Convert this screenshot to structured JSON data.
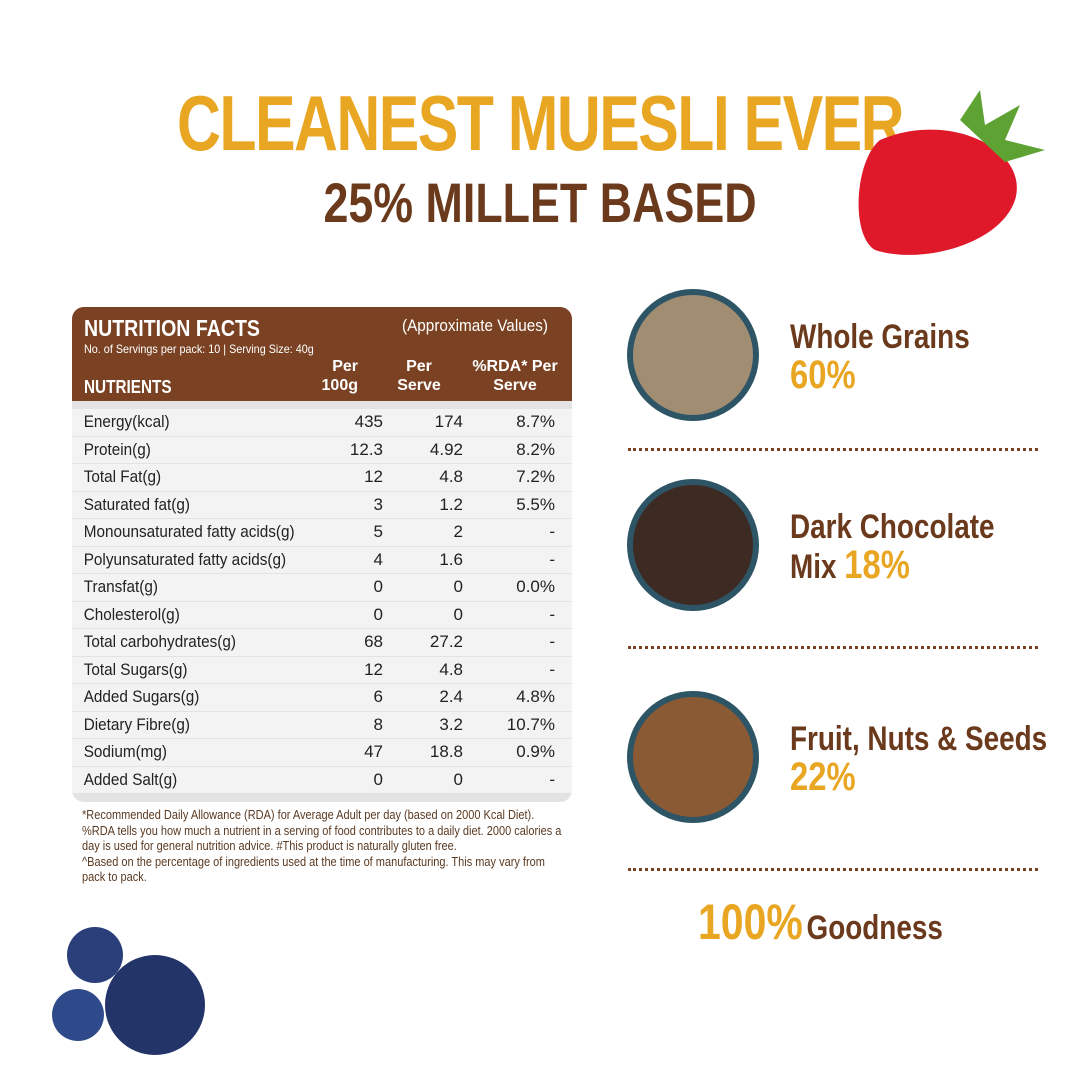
{
  "header": {
    "title": "CLEANEST MUESLI EVER",
    "subtitle": "25% MILLET BASED"
  },
  "table": {
    "title": "NUTRITION FACTS",
    "note": "(Approximate Values)",
    "servings": "No. of Servings per pack: 10 | Serving Size: 40g",
    "columns": [
      "NUTRIENTS",
      "Per 100g",
      "Per Serve",
      "%RDA* Per Serve"
    ],
    "rows": [
      [
        "Energy(kcal)",
        "435",
        "174",
        "8.7%"
      ],
      [
        "Protein(g)",
        "12.3",
        "4.92",
        "8.2%"
      ],
      [
        "Total Fat(g)",
        "12",
        "4.8",
        "7.2%"
      ],
      [
        "Saturated fat(g)",
        "3",
        "1.2",
        "5.5%"
      ],
      [
        "Monounsaturated fatty acids(g)",
        "5",
        "2",
        "-"
      ],
      [
        "Polyunsaturated fatty acids(g)",
        "4",
        "1.6",
        "-"
      ],
      [
        "Transfat(g)",
        "0",
        "0",
        "0.0%"
      ],
      [
        "Cholesterol(g)",
        "0",
        "0",
        "-"
      ],
      [
        "Total carbohydrates(g)",
        "68",
        "27.2",
        "-"
      ],
      [
        "Total Sugars(g)",
        "12",
        "4.8",
        "-"
      ],
      [
        "Added Sugars(g)",
        "6",
        "2.4",
        "4.8%"
      ],
      [
        "Dietary Fibre(g)",
        "8",
        "3.2",
        "10.7%"
      ],
      [
        "Sodium(mg)",
        "47",
        "18.8",
        "0.9%"
      ],
      [
        "Added Salt(g)",
        "0",
        "0",
        "-"
      ]
    ]
  },
  "footnotes": [
    "*Recommended Daily Allowance (RDA) for Average Adult per day (based on 2000 Kcal Diet). %RDA tells you how much a nutrient in a serving of food contributes to a daily diet. 2000 calories a day is used for general nutrition advice. #This product is naturally gluten free.",
    "^Based on the percentage of ingredients used at the time of manufacturing. This may vary from pack to pack."
  ],
  "ingredients": [
    {
      "name": "Whole Grains",
      "percent": "60%"
    },
    {
      "name": "Dark Chocolate Mix",
      "percent": "18%"
    },
    {
      "name": "Fruit, Nuts & Seeds",
      "percent": "22%"
    }
  ],
  "footer": {
    "percent": "100%",
    "label": "Goodness"
  }
}
